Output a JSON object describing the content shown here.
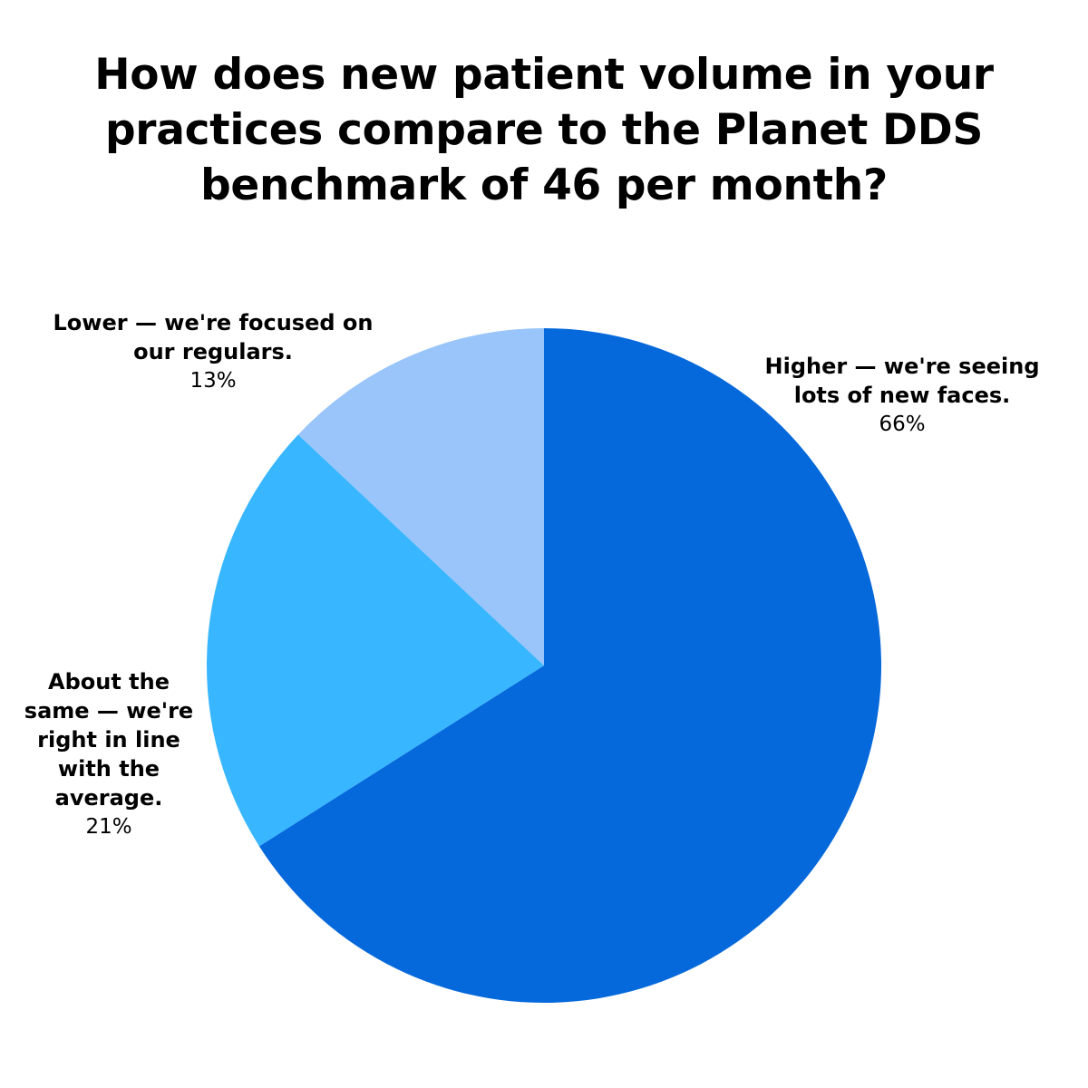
{
  "chart_data": {
    "type": "pie",
    "title_lines": [
      "How does new patient volume in your",
      "practices compare to the Planet DDS",
      "benchmark of 46 per month?"
    ],
    "slices": [
      {
        "label_lines": [
          "Higher — we're seeing",
          "lots of new faces."
        ],
        "value": 66,
        "value_label": "66%",
        "color": "#0569DC"
      },
      {
        "label_lines": [
          "About the",
          "same — we're",
          "right in line",
          "with the",
          "average."
        ],
        "value": 21,
        "value_label": "21%",
        "color": "#38B6FF"
      },
      {
        "label_lines": [
          "Lower — we're focused on",
          "our regulars."
        ],
        "value": 13,
        "value_label": "13%",
        "color": "#99C5FA"
      }
    ],
    "start_angle": "12 o'clock",
    "direction": "clockwise",
    "legend": "none"
  }
}
